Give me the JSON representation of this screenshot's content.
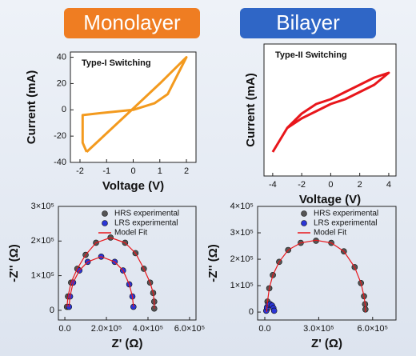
{
  "headers": [
    "Monolayer",
    "Bilayer"
  ],
  "chart_data": [
    {
      "type": "line",
      "annotation": "Type-I Switching",
      "xlabel": "Voltage (V)",
      "ylabel": "Current (mA)",
      "xlim": [
        -2.36,
        2.36
      ],
      "ylim": [
        -40,
        44
      ],
      "xticks": [
        -2,
        -1,
        0,
        1,
        2
      ],
      "yticks": [
        -40,
        -20,
        0,
        20,
        40
      ],
      "series": [
        {
          "color": "#f39a1e",
          "x": [
            -1.75,
            0,
            1,
            2,
            1.3,
            0.8,
            0,
            -1,
            -1.9,
            -1.9,
            -1.75
          ],
          "y": [
            -32,
            1,
            20,
            40,
            12,
            5,
            0,
            -2,
            -4,
            -25,
            -32
          ]
        }
      ]
    },
    {
      "type": "line",
      "annotation": "Type-II Switching",
      "xlabel": "Voltage (V)",
      "ylabel": "Current (mA)",
      "xlim": [
        -4.6,
        4.5
      ],
      "ylim": [
        -0.3,
        0.25
      ],
      "xticks": [
        -4,
        -2,
        0,
        2,
        4
      ],
      "yticks": [],
      "series": [
        {
          "color": "#e8161b",
          "x": [
            -4,
            -3,
            -2,
            -1,
            0,
            1,
            2,
            3,
            4,
            3,
            2,
            1,
            0,
            -1,
            -2,
            -3,
            -4
          ],
          "y": [
            -0.2,
            -0.1,
            -0.06,
            -0.03,
            0,
            0.02,
            0.05,
            0.08,
            0.13,
            0.11,
            0.08,
            0.05,
            0.02,
            0,
            -0.04,
            -0.1,
            -0.2
          ]
        }
      ]
    },
    {
      "type": "scatter",
      "xlabel": "Z' (Ω)",
      "ylabel": "-Z'' (Ω)",
      "xlim": [
        -31000,
        631000
      ],
      "ylim": [
        -28000,
        300000
      ],
      "xticks": [
        {
          "value": 0,
          "label": "0.0"
        },
        {
          "value": 200000,
          "label": "2.0×10⁵"
        },
        {
          "value": 400000,
          "label": "4.0×10⁵"
        },
        {
          "value": 600000,
          "label": "6.0×10⁵"
        }
      ],
      "yticks": [
        {
          "value": 0,
          "label": "0"
        },
        {
          "value": 100000,
          "label": "1×10⁵"
        },
        {
          "value": 200000,
          "label": "2×10⁵"
        },
        {
          "value": 300000,
          "label": "3×10⁵"
        }
      ],
      "series": [
        {
          "name": "HRS experimental",
          "color": "#555555",
          "mode": "markers",
          "x": [
            10000,
            15000,
            30000,
            60000,
            100000,
            150000,
            220000,
            290000,
            340000,
            380000,
            410000,
            425000,
            430000,
            430000
          ],
          "y": [
            10000,
            40000,
            80000,
            120000,
            160000,
            195000,
            210000,
            195000,
            165000,
            120000,
            80000,
            50000,
            25000,
            5000
          ]
        },
        {
          "name": "LRS experimental",
          "color": "#2a35d6",
          "mode": "markers",
          "x": [
            20000,
            25000,
            40000,
            70000,
            110000,
            175000,
            240000,
            280000,
            310000,
            325000,
            330000
          ],
          "y": [
            10000,
            40000,
            80000,
            115000,
            140000,
            155000,
            140000,
            115000,
            75000,
            40000,
            10000
          ]
        },
        {
          "name": "Model Fit",
          "color": "#e8161b",
          "mode": "line",
          "x": [
            10000,
            15000,
            30000,
            60000,
            100000,
            150000,
            220000,
            290000,
            340000,
            380000,
            410000,
            425000,
            430000,
            430000,
            null,
            20000,
            25000,
            40000,
            70000,
            110000,
            175000,
            240000,
            280000,
            310000,
            325000,
            330000
          ],
          "y": [
            10000,
            40000,
            80000,
            120000,
            160000,
            195000,
            210000,
            195000,
            165000,
            120000,
            80000,
            50000,
            25000,
            5000,
            null,
            10000,
            40000,
            80000,
            115000,
            140000,
            155000,
            140000,
            115000,
            75000,
            40000,
            10000
          ]
        }
      ]
    },
    {
      "type": "scatter",
      "xlabel": "Z' (Ω)",
      "ylabel": "-Z'' (Ω)",
      "xlim": [
        -40000,
        730000
      ],
      "ylim": [
        -30000,
        400000
      ],
      "xticks": [
        {
          "value": 0,
          "label": "0.0"
        },
        {
          "value": 300000,
          "label": "3.0×10⁵"
        },
        {
          "value": 600000,
          "label": "6.0×10⁵"
        }
      ],
      "yticks": [
        {
          "value": 0,
          "label": "0"
        },
        {
          "value": 100000,
          "label": "1×10⁵"
        },
        {
          "value": 200000,
          "label": "2×10⁵"
        },
        {
          "value": 300000,
          "label": "3×10⁵"
        },
        {
          "value": 400000,
          "label": "4×10⁵"
        }
      ],
      "series": [
        {
          "name": "HRS experimental",
          "color": "#555555",
          "mode": "markers",
          "x": [
            12000,
            15000,
            25000,
            45000,
            80000,
            130000,
            200000,
            285000,
            370000,
            440000,
            500000,
            535000,
            552000,
            558000,
            560000
          ],
          "y": [
            10000,
            40000,
            90000,
            140000,
            190000,
            235000,
            262000,
            270000,
            262000,
            230000,
            170000,
            110000,
            60000,
            30000,
            10000
          ]
        },
        {
          "name": "LRS experimental",
          "color": "#2a35d6",
          "mode": "markers",
          "x": [
            8000,
            12000,
            20000,
            30000,
            40000,
            48000,
            52000
          ],
          "y": [
            5000,
            18000,
            28000,
            30000,
            25000,
            15000,
            5000
          ]
        },
        {
          "name": "Model Fit",
          "color": "#e8161b",
          "mode": "line",
          "x": [
            10000,
            15000,
            25000,
            45000,
            80000,
            130000,
            200000,
            285000,
            370000,
            440000,
            500000,
            535000,
            552000,
            558000,
            560000
          ],
          "y": [
            0,
            40000,
            90000,
            140000,
            190000,
            235000,
            262000,
            272000,
            262000,
            230000,
            170000,
            110000,
            60000,
            30000,
            0
          ]
        }
      ]
    }
  ]
}
